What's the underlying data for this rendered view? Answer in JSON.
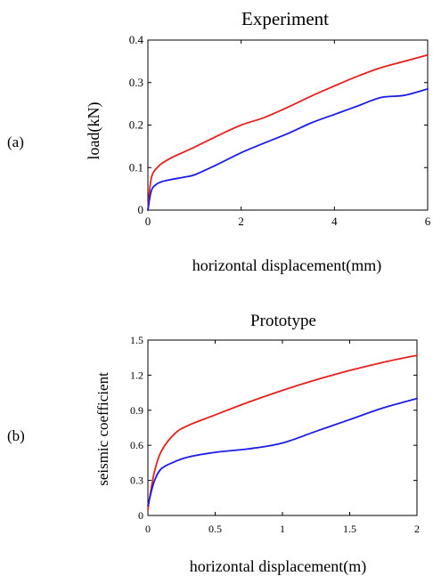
{
  "chart_data": [
    {
      "type": "line",
      "panel_label": "(a)",
      "title": "Experiment",
      "xlabel": "horizontal displacement(mm)",
      "ylabel": "load(kN)",
      "xlim": [
        0,
        6
      ],
      "ylim": [
        0,
        0.4
      ],
      "xticks": [
        0,
        2,
        4,
        6
      ],
      "yticks": [
        0,
        0.1,
        0.2,
        0.3,
        0.4
      ],
      "xtick_labels": [
        "0",
        "2",
        "4",
        "6"
      ],
      "ytick_labels": [
        "0",
        "0.1",
        "0.2",
        "0.3",
        "0.4"
      ],
      "grid": false,
      "series": [
        {
          "color": "#e8201c",
          "x": [
            0,
            0.05,
            0.1,
            0.2,
            0.3,
            0.5,
            0.8,
            1.0,
            1.5,
            2.0,
            2.5,
            3.0,
            3.5,
            4.0,
            4.5,
            5.0,
            5.5,
            6.0
          ],
          "y": [
            0,
            0.06,
            0.085,
            0.1,
            0.11,
            0.123,
            0.138,
            0.148,
            0.175,
            0.2,
            0.218,
            0.242,
            0.268,
            0.292,
            0.315,
            0.335,
            0.35,
            0.365
          ]
        },
        {
          "color": "#1c1ce8",
          "x": [
            0,
            0.05,
            0.1,
            0.2,
            0.3,
            0.5,
            0.8,
            1.0,
            1.5,
            2.0,
            2.5,
            3.0,
            3.5,
            4.0,
            4.5,
            5.0,
            5.5,
            6.0
          ],
          "y": [
            0,
            0.035,
            0.052,
            0.062,
            0.067,
            0.072,
            0.078,
            0.083,
            0.108,
            0.135,
            0.158,
            0.18,
            0.205,
            0.225,
            0.245,
            0.265,
            0.27,
            0.285
          ]
        }
      ]
    },
    {
      "type": "line",
      "panel_label": "(b)",
      "title": "Prototype",
      "xlabel": "horizontal displacement(m)",
      "ylabel": "seismic coefficient",
      "xlim": [
        0,
        2
      ],
      "ylim": [
        0,
        1.5
      ],
      "xticks": [
        0,
        0.5,
        1,
        1.5,
        2
      ],
      "yticks": [
        0,
        0.3,
        0.6,
        0.9,
        1.2,
        1.5
      ],
      "xtick_labels": [
        "0",
        "0.5",
        "1",
        "1.5",
        "2"
      ],
      "ytick_labels": [
        "0",
        "0.3",
        "0.6",
        "0.9",
        "1.2",
        "1.5"
      ],
      "grid": false,
      "series": [
        {
          "color": "#e8201c",
          "x": [
            0,
            0.02,
            0.05,
            0.1,
            0.2,
            0.3,
            0.5,
            0.75,
            1.0,
            1.25,
            1.5,
            1.75,
            2.0
          ],
          "y": [
            0.05,
            0.2,
            0.38,
            0.55,
            0.7,
            0.77,
            0.86,
            0.97,
            1.07,
            1.16,
            1.24,
            1.31,
            1.37
          ]
        },
        {
          "color": "#1c1ce8",
          "x": [
            0,
            0.02,
            0.05,
            0.1,
            0.2,
            0.3,
            0.5,
            0.75,
            1.0,
            1.25,
            1.5,
            1.75,
            2.0
          ],
          "y": [
            0.08,
            0.18,
            0.3,
            0.4,
            0.46,
            0.5,
            0.54,
            0.57,
            0.62,
            0.72,
            0.82,
            0.92,
            1.0
          ]
        }
      ]
    }
  ]
}
